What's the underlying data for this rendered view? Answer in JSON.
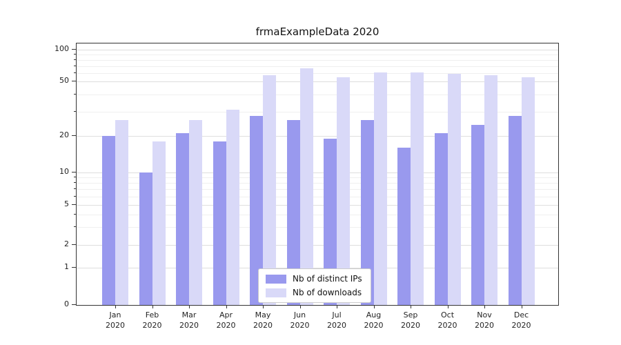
{
  "title": "frmaExampleData 2020",
  "chart_data": {
    "type": "bar",
    "title": "frmaExampleData 2020",
    "categories": [
      "Jan",
      "Feb",
      "Mar",
      "Apr",
      "May",
      "Jun",
      "Jul",
      "Aug",
      "Sep",
      "Oct",
      "Nov",
      "Dec"
    ],
    "category_year": "2020",
    "series": [
      {
        "name": "Nb of distinct IPs",
        "color": "#9999ee",
        "values": [
          20,
          10,
          21,
          18,
          28,
          26,
          19,
          26,
          16,
          21,
          24,
          28
        ]
      },
      {
        "name": "Nb of downloads",
        "color": "#d9d9f8",
        "values": [
          26,
          18,
          26,
          31,
          57,
          67,
          55,
          61,
          61,
          59,
          57,
          55
        ]
      }
    ],
    "yscale": "symlog",
    "y_ticks": [
      0,
      1,
      2,
      5,
      10,
      20,
      50,
      100
    ],
    "y_minor_ticks": [
      3,
      4,
      6,
      7,
      8,
      9,
      30,
      40,
      60,
      70,
      80,
      90
    ],
    "ylim": [
      0,
      130
    ],
    "grid": true,
    "legend_position": "lower center",
    "colors": {
      "bar_dark": "#9999ee",
      "bar_light": "#d9d9f8",
      "grid_major": "#dedede",
      "grid_minor": "#efefef",
      "spine": "#333333"
    }
  }
}
